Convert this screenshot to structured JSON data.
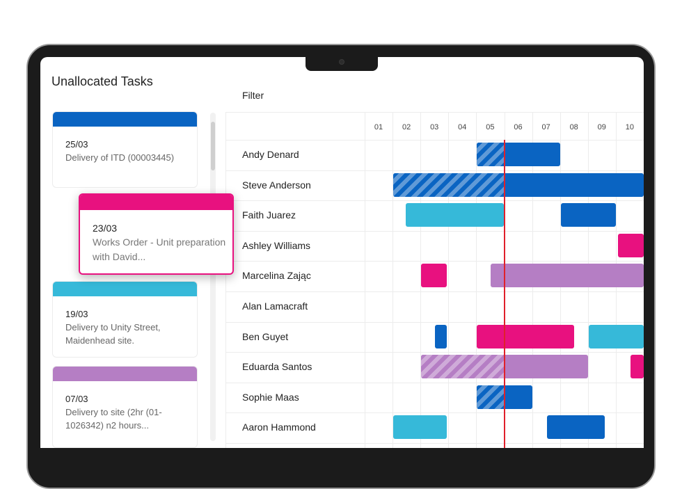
{
  "panel": {
    "title": "Unallocated Tasks"
  },
  "filter": {
    "label": "Filter"
  },
  "colors": {
    "blue": "#0a64c2",
    "pink": "#e8117f",
    "cyan": "#36b9d9",
    "purple": "#b57ec4",
    "now_line": "#e0202a"
  },
  "task_cards": [
    {
      "date": "25/03",
      "description": "Delivery of ITD (00003445)",
      "color": "#0a64c2"
    },
    {
      "date": "19/03",
      "description": "Delivery to Unity Street, Maidenhead site.",
      "color": "#36b9d9"
    },
    {
      "date": "07/03",
      "description": "Delivery to site (2hr (01-1026342) n2 hours...",
      "color": "#b57ec4"
    }
  ],
  "dragged_card": {
    "date": "23/03",
    "description": "Works Order - Unit preparation with David...",
    "color": "#e8117f"
  },
  "timeline": {
    "columns": [
      "01",
      "02",
      "03",
      "04",
      "05",
      "06",
      "07",
      "08",
      "09",
      "10"
    ],
    "current_time_col": 5.0
  },
  "resources": [
    {
      "name": "Andy Denard",
      "bars": [
        {
          "start": 4.0,
          "end": 7.0,
          "color": "blue",
          "hatch_end": 5.0
        }
      ]
    },
    {
      "name": "Steve Anderson",
      "bars": [
        {
          "start": 1.0,
          "end": 10.0,
          "color": "blue",
          "hatch_end": 5.0
        }
      ]
    },
    {
      "name": "Faith Juarez",
      "bars": [
        {
          "start": 1.45,
          "end": 5.0,
          "color": "cyan"
        },
        {
          "start": 7.0,
          "end": 9.0,
          "color": "blue"
        }
      ]
    },
    {
      "name": "Ashley Williams",
      "bars": [
        {
          "start": 9.05,
          "end": 10.0,
          "color": "pink"
        }
      ]
    },
    {
      "name": "Marcelina Zając",
      "bars": [
        {
          "start": 2.0,
          "end": 2.95,
          "color": "pink"
        },
        {
          "start": 4.5,
          "end": 10.0,
          "color": "purple"
        }
      ]
    },
    {
      "name": "Alan Lamacraft",
      "bars": []
    },
    {
      "name": "Ben Guyet",
      "bars": [
        {
          "start": 2.5,
          "end": 2.95,
          "color": "blue"
        },
        {
          "start": 4.0,
          "end": 7.5,
          "color": "pink"
        },
        {
          "start": 8.0,
          "end": 10.0,
          "color": "cyan"
        }
      ]
    },
    {
      "name": "Eduarda Santos",
      "bars": [
        {
          "start": 2.0,
          "end": 8.0,
          "color": "purple",
          "hatch_end": 5.0
        },
        {
          "start": 9.5,
          "end": 10.0,
          "color": "pink"
        }
      ]
    },
    {
      "name": "Sophie Maas",
      "bars": [
        {
          "start": 4.0,
          "end": 6.0,
          "color": "blue",
          "hatch_end": 5.0
        }
      ]
    },
    {
      "name": "Aaron Hammond",
      "bars": [
        {
          "start": 1.0,
          "end": 2.95,
          "color": "cyan"
        },
        {
          "start": 6.5,
          "end": 8.6,
          "color": "blue"
        }
      ]
    }
  ]
}
